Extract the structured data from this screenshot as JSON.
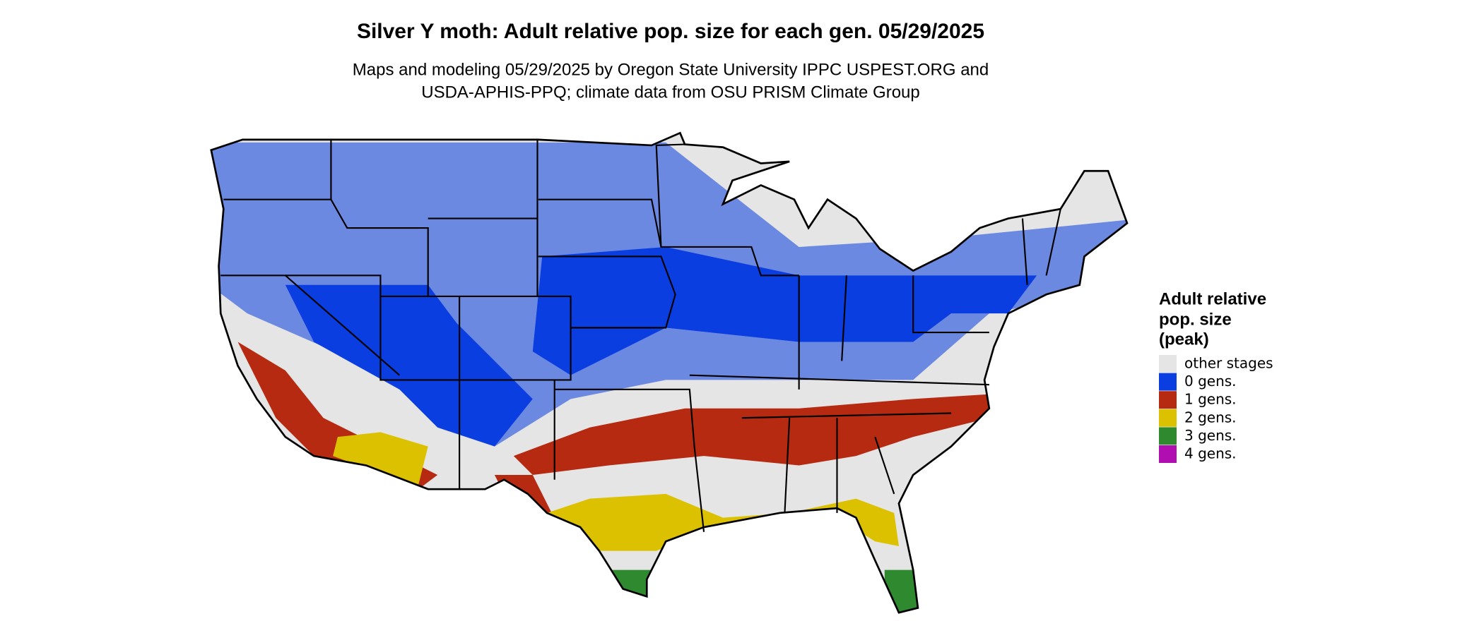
{
  "title": "Silver Y moth: Adult relative pop. size for each gen. 05/29/2025",
  "subtitle": [
    "Maps and modeling 05/29/2025 by Oregon State University IPPC USPEST.ORG and",
    "USDA-APHIS-PPQ; climate data from OSU PRISM Climate Group"
  ],
  "legend": {
    "title": [
      "Adult relative",
      "pop. size",
      "(peak)"
    ],
    "items": [
      {
        "label": "other stages",
        "color": "#e5e5e5"
      },
      {
        "label": "0 gens.",
        "color": "#0a3ee0"
      },
      {
        "label": "1 gens.",
        "color": "#b52a10"
      },
      {
        "label": "2 gens.",
        "color": "#dcc100"
      },
      {
        "label": "3 gens.",
        "color": "#2f8a2f"
      },
      {
        "label": "4 gens.",
        "color": "#b00eb0"
      }
    ]
  }
}
